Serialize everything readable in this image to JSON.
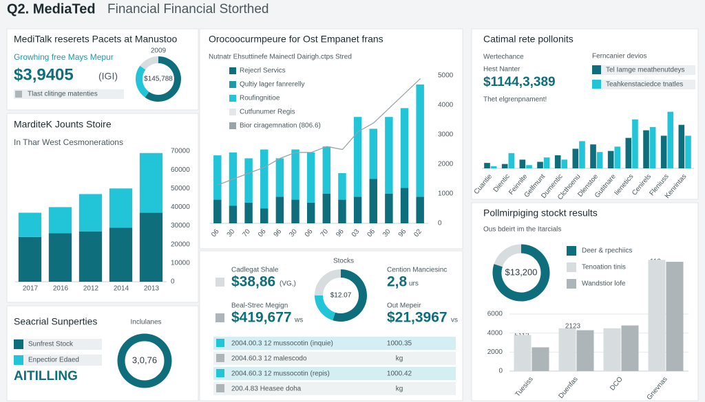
{
  "header": {
    "title": "Q2. MediaTed",
    "subtitle": "Financial Financial Storthed"
  },
  "panels": [
    {
      "title": "MediTalk reserets Pacets at Manustoo",
      "subtitle": "Growhing free Mays Mepur",
      "year": "2009",
      "kpi": "$3,9405",
      "kpi_unit": "(IGI)",
      "legend": "Tlast clitinge matenties"
    },
    {
      "title": "MarditeK Jounts Stoire",
      "subtitle": "In Thar West Cesmonerations"
    },
    {
      "title": "Orocoocurmpeure for Ost Empanet frans",
      "subtitle": "Nutnatr Ehsuttinefe Mainectl Dairigh.ctps Stred",
      "legend": [
        "Qultiy lager fanrerelly",
        "Cutfunumer Regis"
      ]
    },
    {
      "kpis": [
        {
          "label": "Cadlegat Shale",
          "value": "$38,86",
          "unit": "(VG,)"
        },
        {
          "label": "Beal-Strec Megign",
          "value": "$419,677",
          "unit": "ws"
        },
        {
          "label": "Cention Manciesinc",
          "value": "2,8",
          "unit": "urs"
        },
        {
          "label": "Out Mepeir",
          "value": "$21,3967",
          "unit": "vs"
        }
      ],
      "donut_title": "Stocks",
      "table": [
        [
          "2004.00.3 12 mussocotin (inquie)",
          "1000.35"
        ],
        [
          "2004.60.3 12 malescodo",
          "kg"
        ],
        [
          "2004.60.3 12 mussocotin (repis)",
          "1000.42"
        ],
        [
          "200.4.83 Heasee doha",
          "kg"
        ]
      ]
    },
    {
      "title": "Seacrial Sunperties",
      "legend": [
        "Sunfrest Stock",
        "Enpectior Edaed"
      ],
      "kpi": "AITILLING",
      "donut_title": "Inclulanes"
    },
    {
      "title": "Catimal rete pollonits",
      "label1": "Wertechance",
      "label2": "Hest Nanter",
      "kpi": "$1144,3,389",
      "note": "Thet elgrenpnament!",
      "legend_title": "Ferncanier devios"
    },
    {
      "title": "Pollmirpiging stockt results",
      "subtitle": "Ous bdeirt im the Itarcials",
      "legend": "Deer & rpechiics",
      "annotations": [
        "5113",
        "2123",
        "112"
      ]
    }
  ],
  "chart_data": [
    {
      "type": "pie",
      "center_label": "$145,788",
      "values": [
        60,
        25,
        15
      ],
      "colors": [
        "#0f6e7c",
        "#22c4d8",
        "#d7dcdf"
      ]
    },
    {
      "type": "bar",
      "stacked": true,
      "categories": [
        "2017",
        "2016",
        "2012",
        "2014",
        "2013"
      ],
      "series": [
        {
          "name": "Dark",
          "color": "#0f6e7c",
          "values": [
            24000,
            26000,
            27000,
            29000,
            37000
          ]
        },
        {
          "name": "Light",
          "color": "#22c4d8",
          "values": [
            13000,
            14000,
            20000,
            21000,
            32000
          ]
        }
      ],
      "ylim": [
        0,
        70000
      ],
      "yticks": [
        0,
        10000,
        20000,
        30000,
        40000,
        50000,
        60000,
        70000
      ],
      "grid": false
    },
    {
      "type": "bar",
      "stacked": true,
      "categories": [
        "06",
        "30",
        "70",
        "06",
        "96",
        "30",
        "06",
        "70",
        "96",
        "03",
        "06",
        "30",
        "96",
        "02"
      ],
      "series": [
        {
          "name": "Rejecrl Servics",
          "color": "#0f6e7c",
          "values": [
            800,
            600,
            700,
            500,
            900,
            800,
            700,
            1000,
            800,
            900,
            1500,
            1000,
            1200,
            900
          ]
        },
        {
          "name": "Roufingnitioe",
          "color": "#22c4d8",
          "values": [
            1500,
            1800,
            1500,
            2000,
            1300,
            1700,
            1700,
            1600,
            900,
            2700,
            1700,
            2600,
            2700,
            3800
          ]
        },
        {
          "name": "Bior ciragemnation (806.6)",
          "color": "#9aa3a7",
          "type": "line",
          "values": [
            1300,
            1500,
            1700,
            1900,
            2200,
            2400,
            2400,
            2600,
            2500,
            3100,
            3400,
            3900,
            4400,
            4900
          ]
        }
      ],
      "ylim": [
        0,
        5000
      ],
      "yticks": [
        0,
        1000,
        2000,
        3000,
        4000,
        5000
      ],
      "grid": false
    },
    {
      "type": "pie",
      "center_label": "$12.07",
      "values": [
        55,
        20,
        25
      ],
      "colors": [
        "#0f6e7c",
        "#22c4d8",
        "#d7dcdf"
      ]
    },
    {
      "type": "pie",
      "center_label": "3,0,76",
      "values": [
        100
      ],
      "colors": [
        "#0f6e7c"
      ]
    },
    {
      "type": "bar",
      "stacked": false,
      "categories": [
        "Cuantie",
        "Dientic",
        "Feinnlte",
        "Gelfmunt",
        "Dumentic",
        "Clcthoenu",
        "Dlenstoe",
        "Gutitnare",
        "Iienetics",
        "Cenirels",
        "Fleniuss",
        "Kenrintas"
      ],
      "series": [
        {
          "name": "Tel Iamge meathenutdeys",
          "color": "#0f6e7c",
          "values": [
            5,
            4,
            8,
            6,
            12,
            18,
            22,
            16,
            28,
            35,
            30,
            40
          ]
        },
        {
          "name": "Teahkenstaciedce tnatles",
          "color": "#22c4d8",
          "values": [
            2,
            14,
            3,
            10,
            8,
            25,
            15,
            20,
            45,
            38,
            52,
            30
          ]
        }
      ],
      "ylim": [
        0,
        60
      ],
      "grid": false
    },
    {
      "type": "pie",
      "center_label": "$13,200",
      "values": [
        80,
        20
      ],
      "colors": [
        "#0f6e7c",
        "#d7dcdf"
      ]
    },
    {
      "type": "bar",
      "stacked": false,
      "categories": [
        "Tuesiss",
        "Duenfas",
        "DCO",
        "Gnevnas"
      ],
      "series": [
        {
          "name": "Tenoation tinis",
          "color": "#d7dcdf",
          "values": [
            3800,
            4500,
            4500,
            11700
          ]
        },
        {
          "name": "Wandstior lofe",
          "color": "#aeb5b9",
          "values": [
            2500,
            4300,
            4800,
            11500
          ]
        }
      ],
      "ylim": [
        0,
        12000
      ],
      "yticks": [
        0,
        2000,
        4000,
        6000
      ],
      "grid": true
    }
  ]
}
